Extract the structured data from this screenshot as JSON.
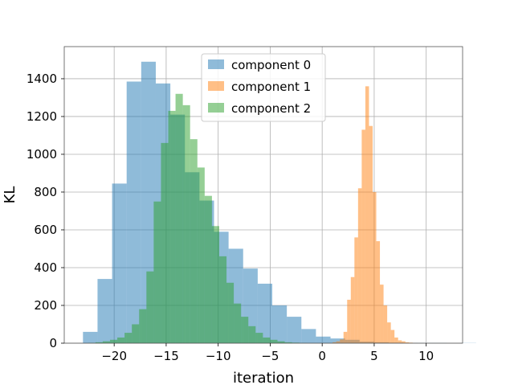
{
  "chart_data": {
    "type": "bar",
    "title": "",
    "xlabel": "iteration",
    "ylabel": "KL",
    "xlim": [
      -24.8,
      13.5
    ],
    "ylim": [
      0,
      1570
    ],
    "xticks": [
      -20,
      -15,
      -10,
      -5,
      0,
      5,
      10
    ],
    "xtick_labels": [
      "−20",
      "−15",
      "−10",
      "−5",
      "0",
      "5",
      "10"
    ],
    "yticks": [
      0,
      200,
      400,
      600,
      800,
      1000,
      1200,
      1400
    ],
    "ytick_labels": [
      "0",
      "200",
      "400",
      "600",
      "800",
      "1000",
      "1200",
      "1400"
    ],
    "grid": true,
    "legend_position": "upper-center",
    "series": [
      {
        "name": "component 0",
        "color": "#1f77b4",
        "alpha": 0.5,
        "bin_start": -23.0,
        "bin_width": 1.4,
        "values": [
          60,
          340,
          845,
          1385,
          1490,
          1375,
          1210,
          905,
          755,
          590,
          500,
          395,
          315,
          200,
          140,
          75,
          35,
          25,
          18,
          8,
          5,
          3,
          2,
          1,
          1,
          0,
          1
        ]
      },
      {
        "name": "component 1",
        "color": "#ff7f0e",
        "alpha": 0.5,
        "bin_start": 1.0,
        "bin_width": 0.35,
        "values": [
          5,
          10,
          20,
          60,
          230,
          350,
          560,
          820,
          1130,
          1360,
          1150,
          800,
          540,
          310,
          200,
          110,
          70,
          30,
          15,
          10,
          5,
          3,
          1
        ]
      },
      {
        "name": "component 2",
        "color": "#2ca02c",
        "alpha": 0.5,
        "bin_start": -22.5,
        "bin_width": 0.7,
        "values": [
          2,
          5,
          10,
          18,
          30,
          55,
          100,
          180,
          380,
          750,
          1060,
          1230,
          1320,
          1260,
          1080,
          930,
          780,
          620,
          460,
          320,
          210,
          140,
          90,
          55,
          30,
          18,
          10,
          5,
          3,
          1
        ]
      }
    ]
  }
}
